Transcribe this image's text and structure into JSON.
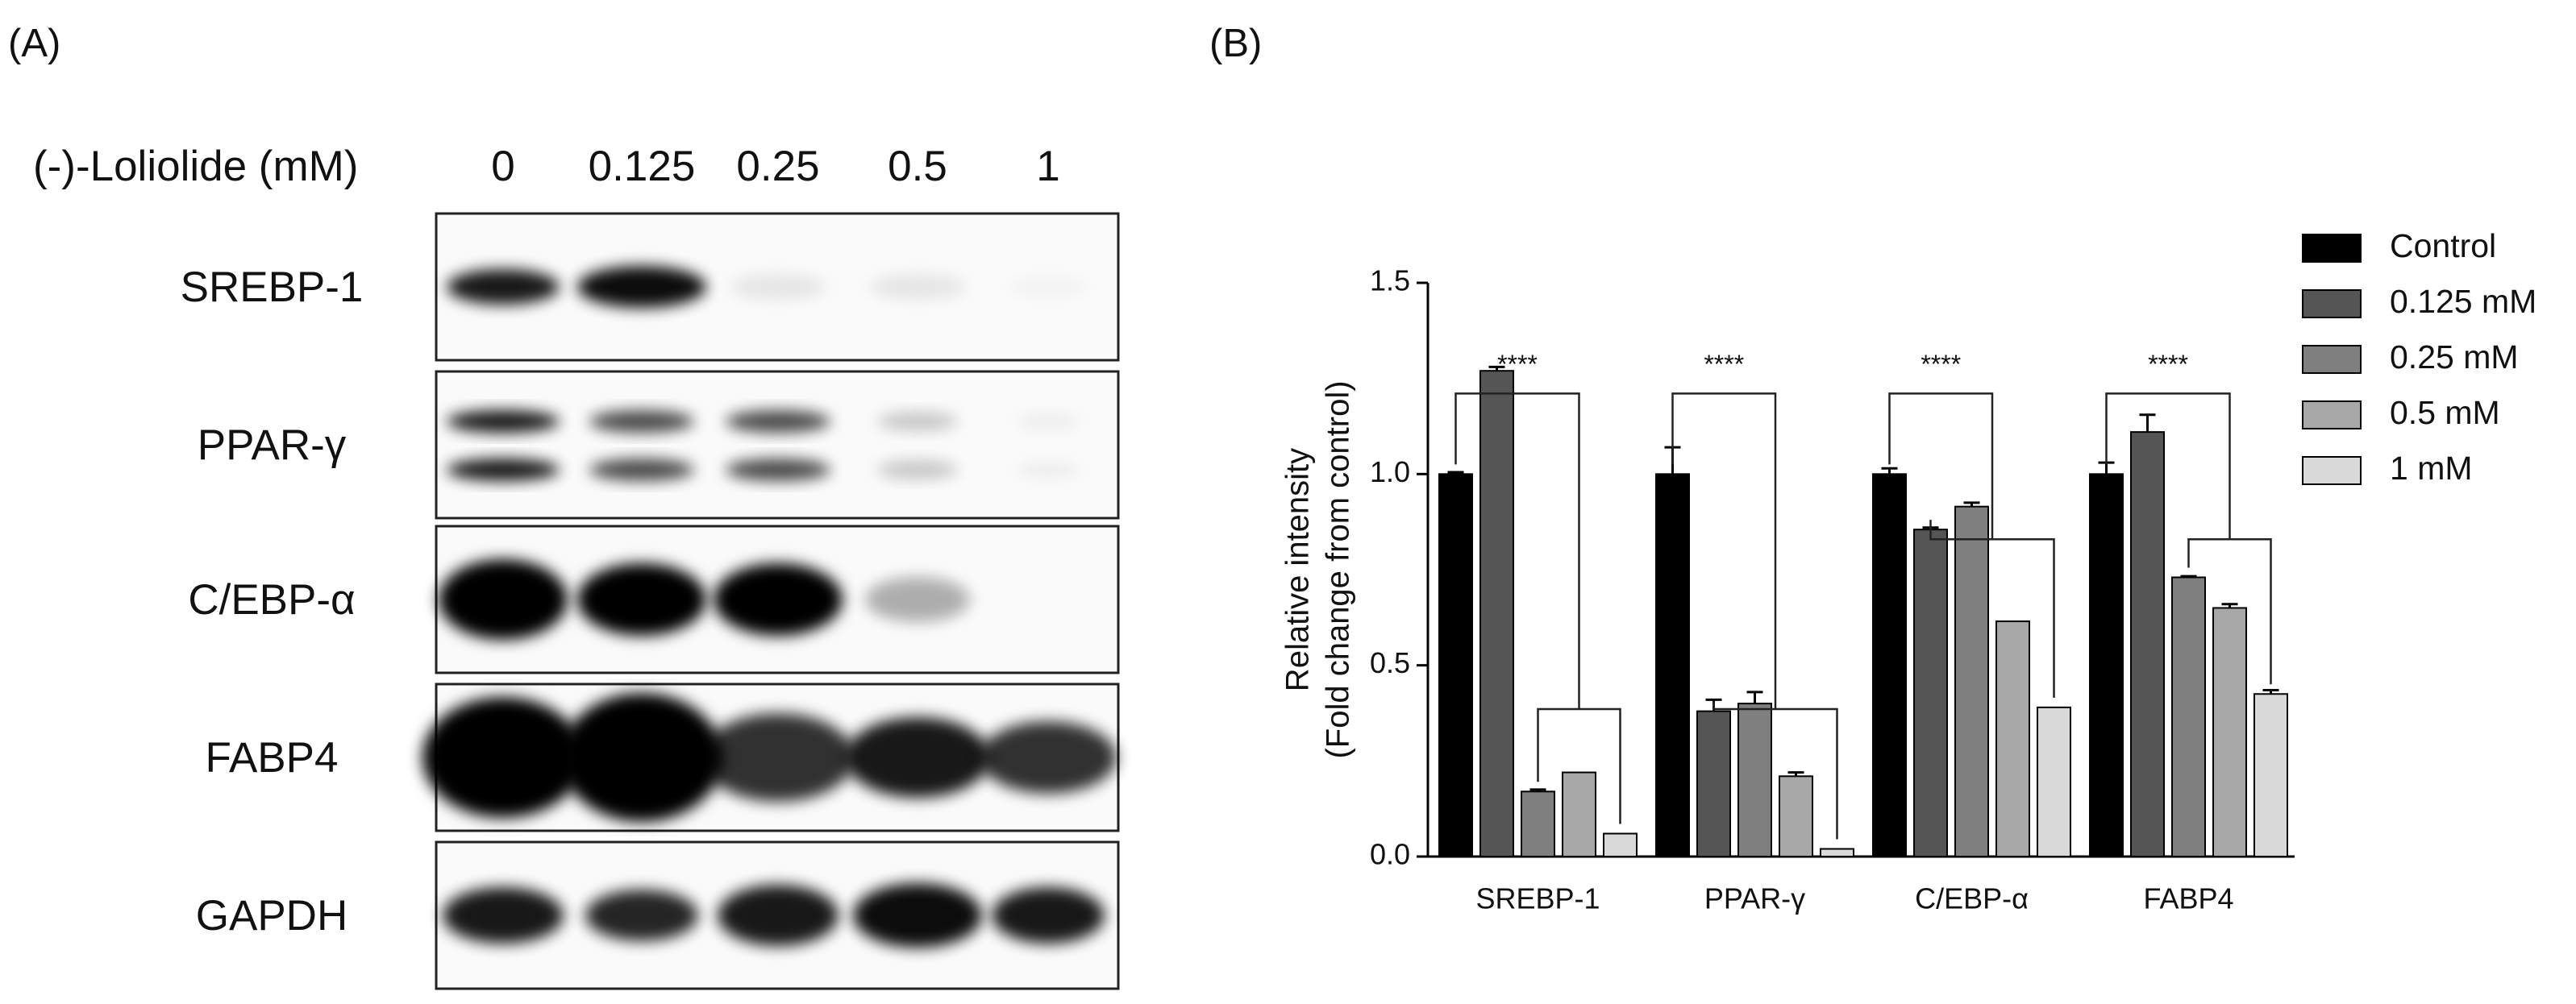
{
  "panel_labels": [
    "(A)",
    "(B)"
  ],
  "blot": {
    "treatment_label": "(-)-Loliolide (mM)",
    "doses": [
      "0",
      "0.125",
      "0.25",
      "0.5",
      "1"
    ],
    "proteins": [
      "SREBP-1",
      "PPAR-γ",
      "C/EBP-α",
      "FABP4",
      "GAPDH"
    ]
  },
  "chart_data": {
    "type": "bar",
    "ylabel": [
      "Relative intensity",
      "(Fold change from control)"
    ],
    "categories": [
      "SREBP-1",
      "PPAR-γ",
      "C/EBP-α",
      "FABP4"
    ],
    "series": [
      {
        "name": "Control",
        "color": "#000000",
        "values": [
          1.0,
          1.0,
          1.0,
          1.0
        ],
        "errors": [
          0.005,
          0.07,
          0.015,
          0.03
        ]
      },
      {
        "name": "0.125 mM",
        "color": "#555555",
        "values": [
          1.27,
          0.38,
          0.855,
          1.11
        ],
        "errors": [
          0.01,
          0.03,
          0.005,
          0.045
        ]
      },
      {
        "name": "0.25 mM",
        "color": "#7f7f7f",
        "values": [
          0.17,
          0.4,
          0.915,
          0.73
        ],
        "errors": [
          0.005,
          0.03,
          0.01,
          0.003
        ]
      },
      {
        "name": "0.5 mM",
        "color": "#a8a8a8",
        "values": [
          0.22,
          0.21,
          0.615,
          0.65
        ],
        "errors": [
          0,
          0.01,
          0,
          0.01
        ]
      },
      {
        "name": "1 mM",
        "color": "#d9d9d9",
        "values": [
          0.06,
          0.02,
          0.39,
          0.425
        ],
        "errors": [
          0,
          0,
          0,
          0.01
        ]
      }
    ],
    "significance": [
      "****",
      "****",
      "****",
      "****"
    ],
    "ylim": [
      0,
      1.5
    ],
    "yticks": [
      {
        "value": 0,
        "label": "0.0"
      },
      0.5,
      {
        "value": 1,
        "label": "1.0"
      },
      {
        "value": 1.5,
        "label": "1.5"
      }
    ],
    "legend": "right"
  }
}
